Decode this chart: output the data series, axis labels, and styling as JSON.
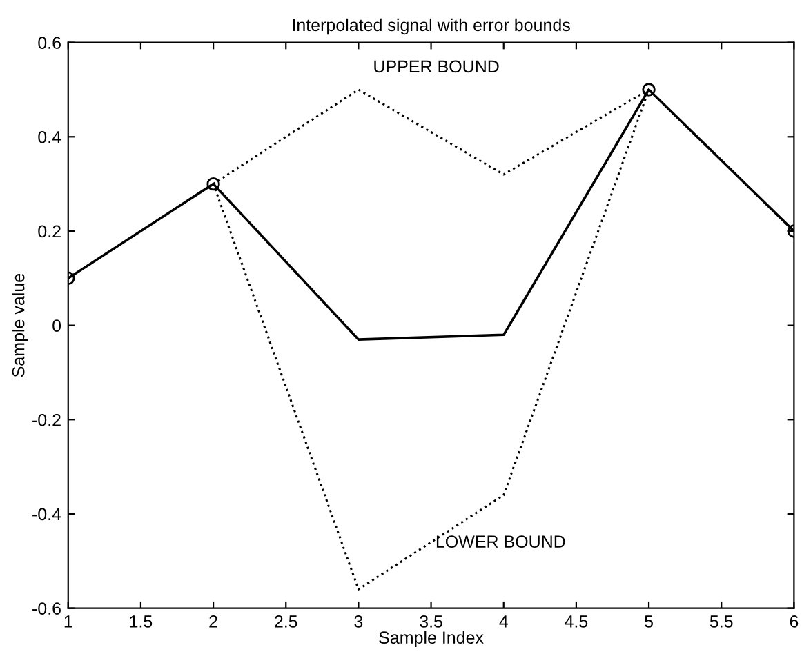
{
  "chart_data": {
    "type": "line",
    "title": "Interpolated signal with error bounds",
    "xlabel": "Sample Index",
    "ylabel": "Sample value",
    "series": [
      {
        "x": [
          2,
          3,
          4,
          5
        ],
        "values": [
          0.3,
          0.5,
          0.32,
          0.5
        ],
        "color": "#000000",
        "line_style": "dotted",
        "marker": "none"
      },
      {
        "x": [
          2,
          3,
          4,
          5
        ],
        "values": [
          0.3,
          -0.56,
          -0.36,
          0.5
        ],
        "color": "#000000",
        "line_style": "dotted",
        "marker": "none"
      },
      {
        "x": [
          1,
          2,
          3,
          4,
          5,
          6
        ],
        "values": [
          0.1,
          0.3,
          -0.03,
          -0.02,
          0.5,
          0.2
        ],
        "color": "#000000",
        "line_style": "solid",
        "marker": "none"
      },
      {
        "type": "scatter",
        "x": [
          1,
          2,
          5,
          6
        ],
        "values": [
          0.1,
          0.3,
          0.5,
          0.2
        ],
        "color": "#000000",
        "marker": "circle"
      }
    ],
    "annotations": [
      "UPPER BOUND",
      "LOWER BOUND"
    ],
    "xlim": [
      1,
      6
    ],
    "ylim": [
      -0.6,
      0.6
    ],
    "xticks": [
      1,
      1.5,
      2,
      2.5,
      3,
      3.5,
      4,
      4.5,
      5,
      5.5,
      6
    ],
    "yticks": [
      -0.6,
      -0.4,
      -0.2,
      0,
      0.2,
      0.4,
      0.6
    ],
    "grid": false
  }
}
